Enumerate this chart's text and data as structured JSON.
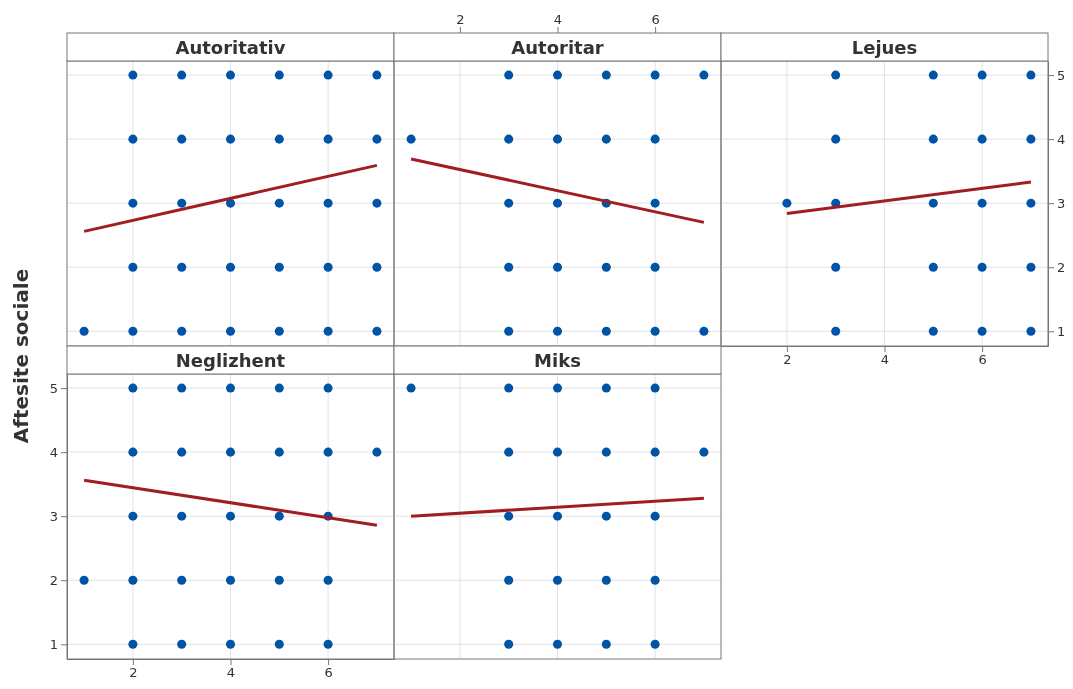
{
  "chart_data": [
    {
      "type": "scatter",
      "title": "Autoritativ",
      "xlim": [
        0.65,
        7.35
      ],
      "ylim": [
        0.77,
        5.22
      ],
      "xticks": [
        2,
        4,
        6
      ],
      "yticks": [
        1,
        2,
        3,
        4,
        5
      ],
      "grid": true,
      "marker": "circle",
      "tick_labels": false,
      "series": [
        {
          "color": "#0054a6",
          "x": [
            2,
            3,
            4,
            5,
            6,
            7,
            2,
            3,
            4,
            5,
            6,
            7,
            2,
            3,
            4,
            5,
            6,
            7,
            2,
            3,
            4,
            5,
            6,
            7,
            1,
            2,
            3,
            4,
            5,
            6,
            7
          ],
          "values": [
            5,
            5,
            5,
            5,
            5,
            5,
            4,
            4,
            4,
            4,
            4,
            4,
            3,
            3,
            3,
            3,
            3,
            3,
            2,
            2,
            2,
            2,
            2,
            2,
            1,
            1,
            1,
            1,
            1,
            1,
            1
          ]
        },
        {
          "type": "line",
          "marker": "none",
          "color": "#a11d21",
          "x": [
            1,
            7
          ],
          "values": [
            2.56,
            3.59
          ]
        }
      ]
    },
    {
      "type": "scatter",
      "title": "Autoritar",
      "xlim": [
        0.65,
        7.35
      ],
      "ylim": [
        0.77,
        5.22
      ],
      "xticks": [
        2,
        4,
        6
      ],
      "yticks": [
        1,
        2,
        3,
        4,
        5
      ],
      "x2lim": [
        0.65,
        7.35
      ],
      "x2ticks": [
        2,
        4,
        6
      ],
      "grid": true,
      "marker": "circle",
      "tick_labels": false,
      "series": [
        {
          "color": "#0054a6",
          "x": [
            3,
            4,
            5,
            6,
            7,
            1,
            3,
            4,
            5,
            6,
            3,
            4,
            5,
            6,
            3,
            4,
            5,
            6,
            3,
            4,
            5,
            6,
            7
          ],
          "values": [
            5,
            5,
            5,
            5,
            5,
            4,
            4,
            4,
            4,
            4,
            3,
            3,
            3,
            3,
            2,
            2,
            2,
            2,
            1,
            1,
            1,
            1,
            1
          ]
        },
        {
          "type": "line",
          "marker": "none",
          "color": "#a11d21",
          "x": [
            1,
            7
          ],
          "values": [
            3.69,
            2.7
          ]
        }
      ]
    },
    {
      "type": "scatter",
      "title": "Lejues",
      "xlim": [
        0.65,
        7.35
      ],
      "xticks": [
        2,
        4,
        6
      ],
      "y2lim": [
        0.77,
        5.22
      ],
      "y2ticks": [
        1,
        2,
        3,
        4,
        5
      ],
      "grid": true,
      "marker": "circle",
      "series": [
        {
          "axis": "y2",
          "color": "#0054a6",
          "x": [
            3,
            5,
            6,
            7,
            3,
            5,
            6,
            7,
            2,
            3,
            5,
            6,
            7,
            3,
            5,
            6,
            7,
            3,
            5,
            6,
            7
          ],
          "values": [
            5,
            5,
            5,
            5,
            4,
            4,
            4,
            4,
            3,
            3,
            3,
            3,
            3,
            2,
            2,
            2,
            2,
            1,
            1,
            1,
            1
          ]
        },
        {
          "type": "line",
          "axis": "y2",
          "marker": "none",
          "color": "#a11d21",
          "x": [
            2,
            7
          ],
          "values": [
            2.84,
            3.33
          ]
        }
      ]
    },
    {
      "type": "scatter",
      "title": "Neglizhent",
      "ylabel": "Aftesite sociale",
      "xlim": [
        0.65,
        7.35
      ],
      "ylim": [
        0.77,
        5.22
      ],
      "xticks": [
        2,
        4,
        6
      ],
      "yticks": [
        1,
        2,
        3,
        4,
        5
      ],
      "grid": true,
      "marker": "circle",
      "series": [
        {
          "color": "#0054a6",
          "x": [
            2,
            3,
            4,
            5,
            6,
            2,
            3,
            4,
            5,
            6,
            7,
            2,
            3,
            4,
            5,
            6,
            1,
            2,
            3,
            4,
            5,
            6,
            2,
            3,
            4,
            5,
            6
          ],
          "values": [
            5,
            5,
            5,
            5,
            5,
            4,
            4,
            4,
            4,
            4,
            4,
            3,
            3,
            3,
            3,
            3,
            2,
            2,
            2,
            2,
            2,
            2,
            1,
            1,
            1,
            1,
            1
          ]
        },
        {
          "type": "line",
          "marker": "none",
          "color": "#a11d21",
          "x": [
            1,
            7
          ],
          "values": [
            3.56,
            2.86
          ]
        }
      ]
    },
    {
      "type": "scatter",
      "title": "Miks",
      "xlim": [
        0.65,
        7.35
      ],
      "ylim": [
        0.77,
        5.22
      ],
      "xticks": [
        2,
        4,
        6
      ],
      "yticks": [
        1,
        2,
        3,
        4,
        5
      ],
      "grid": true,
      "marker": "circle",
      "tick_labels": false,
      "series": [
        {
          "color": "#0054a6",
          "x": [
            1,
            3,
            4,
            5,
            6,
            3,
            4,
            5,
            6,
            7,
            3,
            4,
            5,
            6,
            3,
            4,
            5,
            6,
            3,
            4,
            5,
            6
          ],
          "values": [
            5,
            5,
            5,
            5,
            5,
            4,
            4,
            4,
            4,
            4,
            3,
            3,
            3,
            3,
            2,
            2,
            2,
            2,
            1,
            1,
            1,
            1
          ]
        },
        {
          "type": "line",
          "marker": "none",
          "color": "#a11d21",
          "x": [
            1,
            7
          ],
          "values": [
            3.0,
            3.28
          ]
        }
      ]
    }
  ]
}
